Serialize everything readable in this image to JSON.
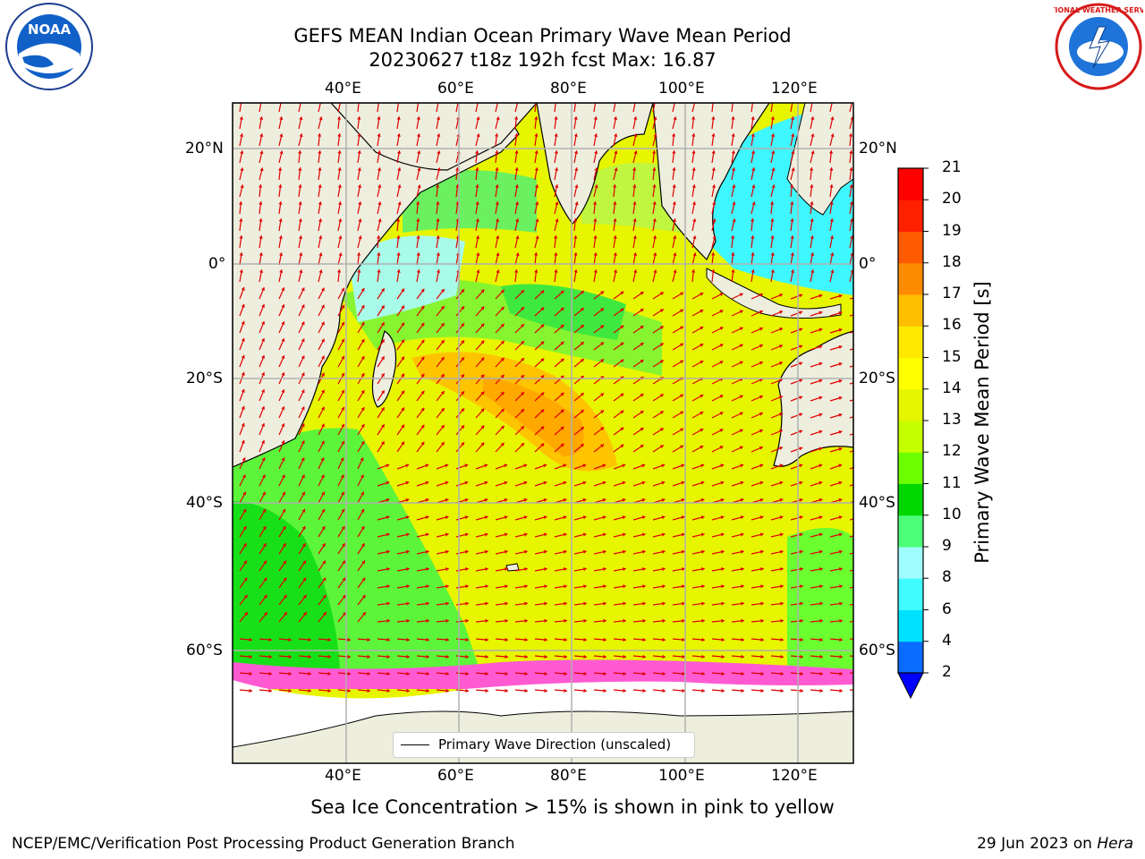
{
  "title_line1": "GEFS MEAN Indian Ocean Primary Wave Mean Period",
  "title_line2": "20230627 t18z 192h fcst   Max: 16.87",
  "logos": {
    "left": {
      "name": "noaa-logo",
      "text": "NOAA"
    },
    "right": {
      "name": "national-weather-service-logo",
      "text": "NATIONAL WEATHER SERVICE"
    }
  },
  "map": {
    "lon_labels": [
      "40°E",
      "60°E",
      "80°E",
      "100°E",
      "120°E"
    ],
    "lat_labels": [
      "20°N",
      "0°",
      "20°S",
      "40°S",
      "60°S"
    ],
    "ocean_color": "#eeeede",
    "land_color": "#eeeede"
  },
  "colorbar": {
    "title": "Primary Wave Mean Period [s]",
    "ticks": [
      "2",
      "4",
      "6",
      "8",
      "9",
      "10",
      "11",
      "12",
      "13",
      "14",
      "15",
      "16",
      "17",
      "18",
      "19",
      "20",
      "21"
    ],
    "colors": [
      "#0a6bff",
      "#00e1ff",
      "#3ffcff",
      "#a0fdff",
      "#4dff79",
      "#00d700",
      "#6bff00",
      "#c6ff00",
      "#e6f500",
      "#ffff00",
      "#ffe900",
      "#ffbe00",
      "#ff8c00",
      "#ff5a00",
      "#ff2000",
      "#ff0000"
    ],
    "extend_color": "#0000ff"
  },
  "legend": {
    "label": "Primary Wave Direction (unscaled)"
  },
  "caption": "Sea Ice Concentration > 15% is shown in pink to yellow",
  "footer_left": "NCEP/EMC/Verification Post Processing Product Generation Branch",
  "footer_right_prefix": "29 Jun 2023 on ",
  "footer_right_host": "Hera"
}
